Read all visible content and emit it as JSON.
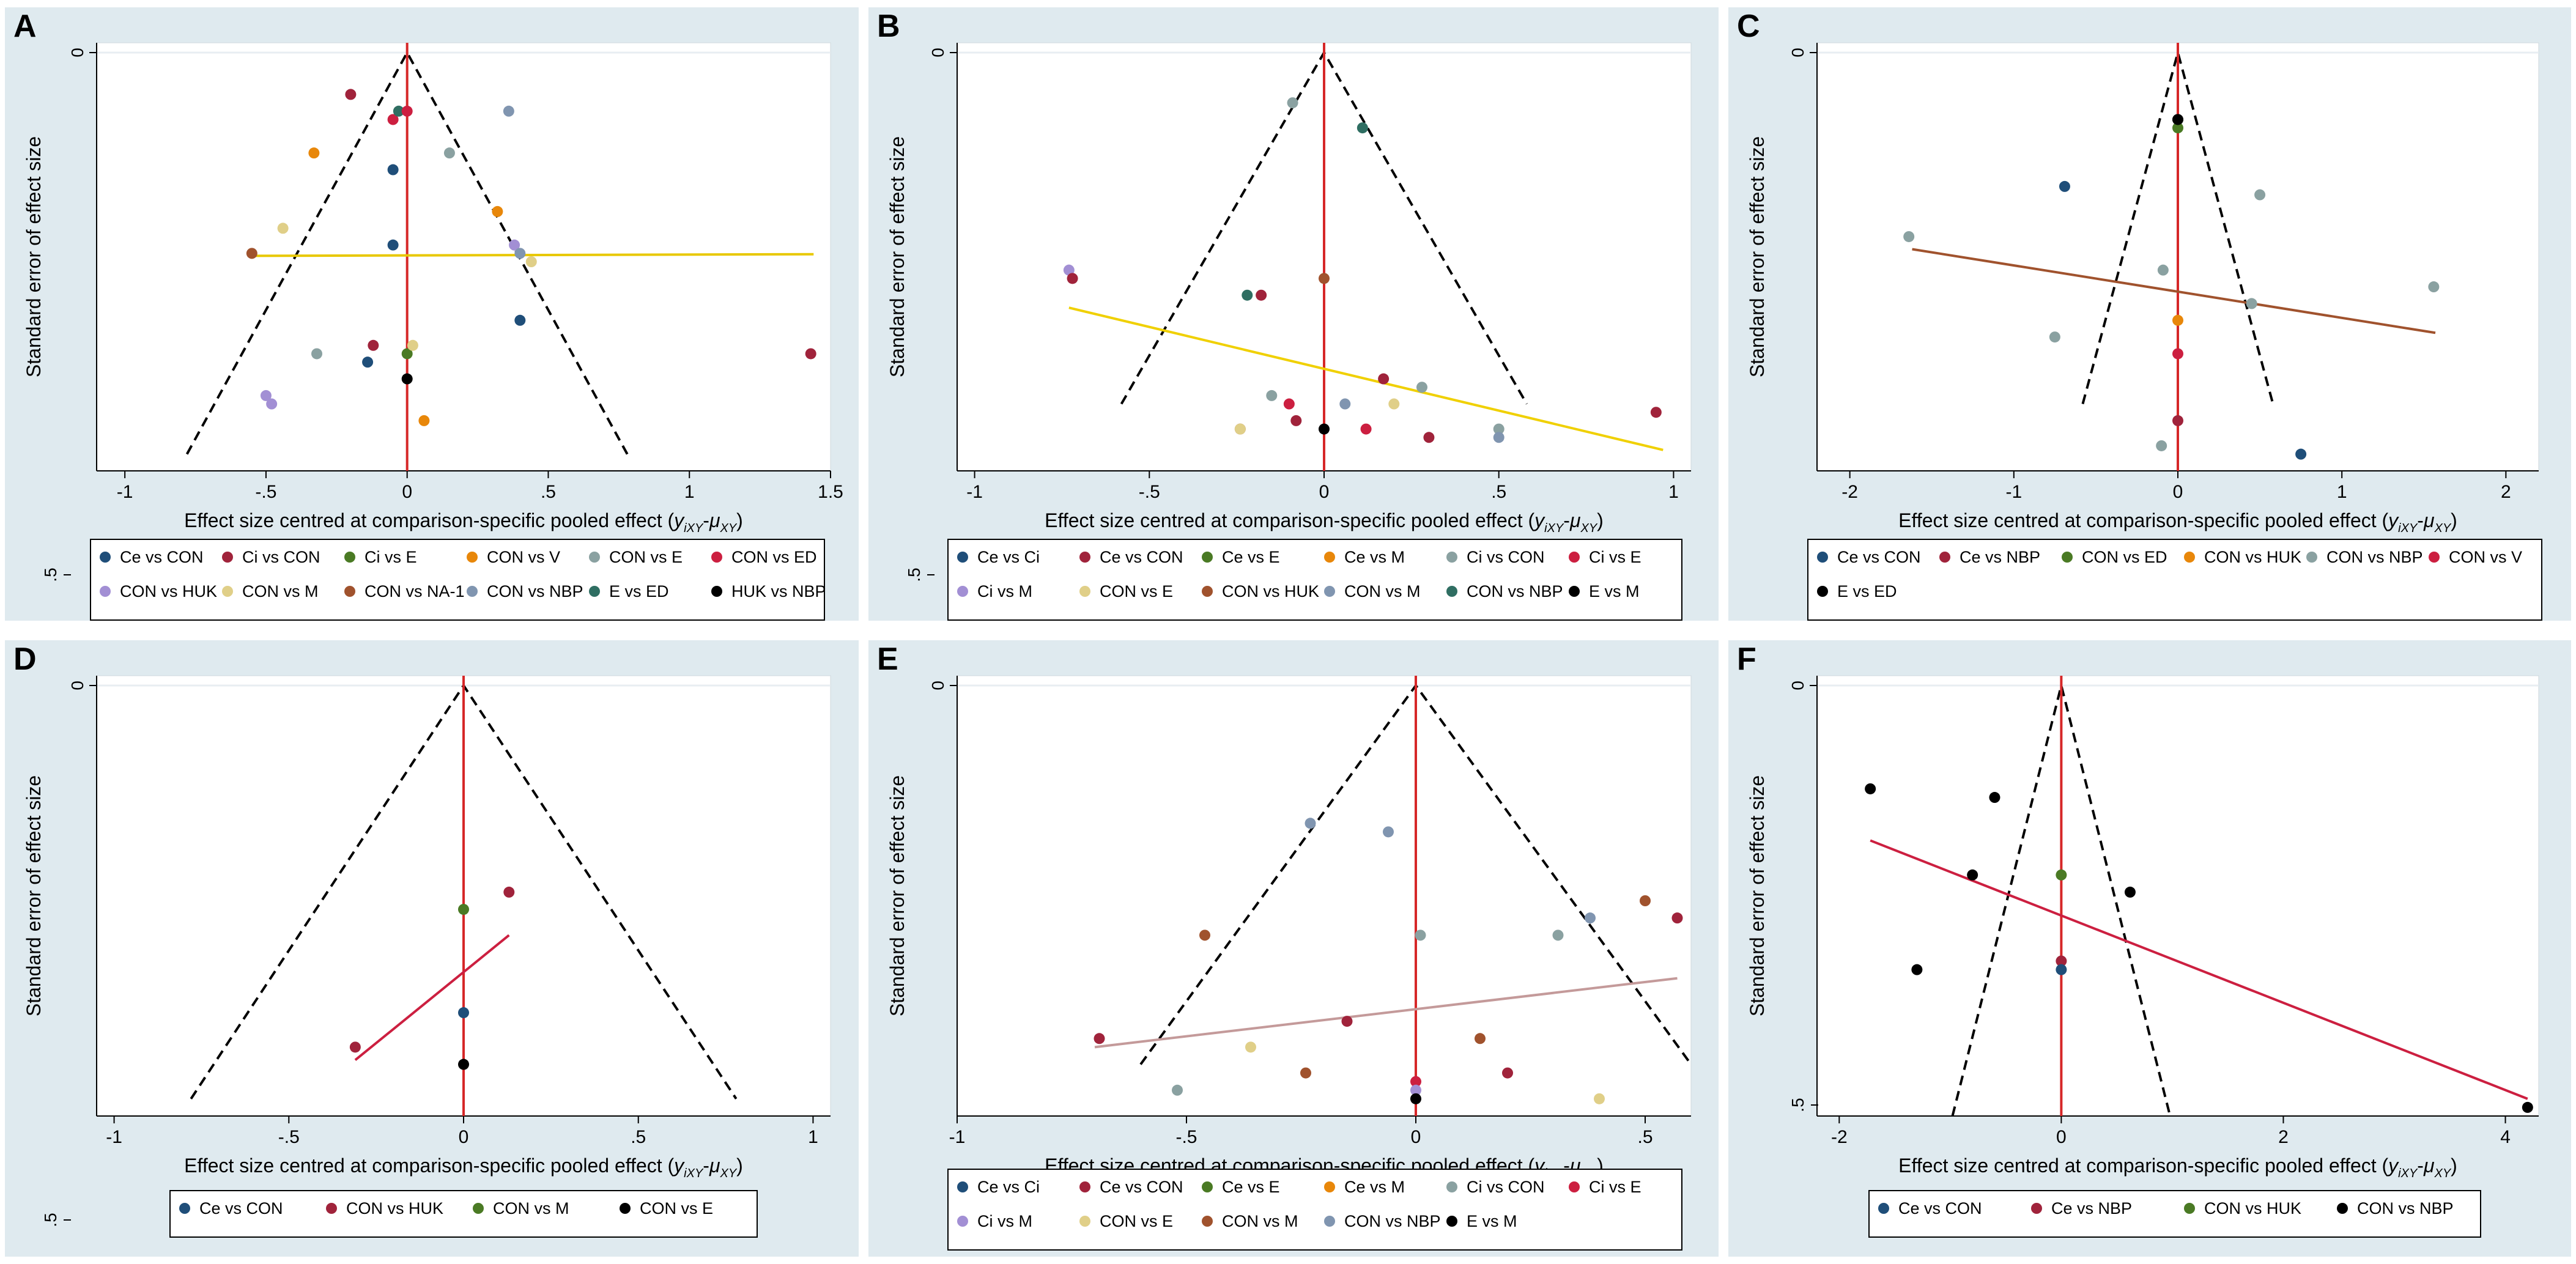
{
  "colors": {
    "panel_bg": "#dfeaef",
    "plot_bg": "#ffffff",
    "grid": "#e8eef2",
    "ref_line": "#d62728",
    "funnel": "#000000"
  },
  "axis_common": {
    "xlabel_prefix": "Effect size centred at comparison-specific pooled effect (",
    "xlabel_math": "y",
    "xlabel_sub1": "iXY",
    "xlabel_mid": "-",
    "xlabel_mu": "μ",
    "xlabel_sub2": "XY",
    "xlabel_suffix": ")",
    "ylabel": "Standard error of effect size"
  },
  "chart_data": [
    {
      "panel": "A",
      "type": "scatter",
      "xlim": [
        -1.1,
        1.5
      ],
      "ylim": [
        0,
        0.5
      ],
      "xticks": [
        -1,
        -0.5,
        0,
        0.5,
        1,
        1.5
      ],
      "xtick_labels": [
        "-1",
        "-.5",
        "0",
        ".5",
        "1",
        "1.5"
      ],
      "y_top_label": "0",
      "y_bottom_label": ".5",
      "funnel": {
        "apex": [
          0,
          0
        ],
        "left_base": [
          -0.78,
          0.48
        ],
        "right_base": [
          0.78,
          0.48
        ]
      },
      "regression": {
        "color": "#e8c800",
        "from": [
          -0.55,
          0.243
        ],
        "to": [
          1.44,
          0.241
        ]
      },
      "legend": [
        {
          "label": "Ce vs CON",
          "color": "#1f4e79"
        },
        {
          "label": "Ci vs CON",
          "color": "#a0233b"
        },
        {
          "label": "Ci vs E",
          "color": "#4a7a24"
        },
        {
          "label": "CON vs V",
          "color": "#e8870a"
        },
        {
          "label": "CON vs E",
          "color": "#8aa1a1"
        },
        {
          "label": "CON vs ED",
          "color": "#cc1f40"
        },
        {
          "label": "CON vs HUK",
          "color": "#a28fd4"
        },
        {
          "label": "CON vs M",
          "color": "#e0cf88"
        },
        {
          "label": "CON vs NA-1",
          "color": "#a0522d"
        },
        {
          "label": "CON vs NBP",
          "color": "#8095b0"
        },
        {
          "label": "E vs ED",
          "color": "#2f6e62"
        },
        {
          "label": "HUK vs NBP",
          "color": "#000000"
        }
      ],
      "points": [
        {
          "x": -0.2,
          "y": 0.05,
          "s": 1
        },
        {
          "x": -0.05,
          "y": 0.08,
          "s": 5
        },
        {
          "x": -0.03,
          "y": 0.07,
          "s": 10
        },
        {
          "x": 0.0,
          "y": 0.07,
          "s": 5
        },
        {
          "x": 0.36,
          "y": 0.07,
          "s": 9
        },
        {
          "x": -0.33,
          "y": 0.12,
          "s": 3
        },
        {
          "x": -0.05,
          "y": 0.14,
          "s": 0
        },
        {
          "x": 0.15,
          "y": 0.12,
          "s": 4
        },
        {
          "x": 0.32,
          "y": 0.19,
          "s": 3
        },
        {
          "x": -0.44,
          "y": 0.21,
          "s": 7
        },
        {
          "x": -0.05,
          "y": 0.23,
          "s": 0
        },
        {
          "x": 0.38,
          "y": 0.23,
          "s": 6
        },
        {
          "x": 0.4,
          "y": 0.24,
          "s": 9
        },
        {
          "x": -0.55,
          "y": 0.24,
          "s": 8
        },
        {
          "x": 0.44,
          "y": 0.25,
          "s": 7
        },
        {
          "x": 0.4,
          "y": 0.32,
          "s": 0
        },
        {
          "x": -0.32,
          "y": 0.36,
          "s": 4
        },
        {
          "x": -0.12,
          "y": 0.35,
          "s": 1
        },
        {
          "x": -0.14,
          "y": 0.37,
          "s": 0
        },
        {
          "x": 0.0,
          "y": 0.36,
          "s": 2
        },
        {
          "x": 0.02,
          "y": 0.35,
          "s": 7
        },
        {
          "x": 1.43,
          "y": 0.36,
          "s": 1
        },
        {
          "x": 0.0,
          "y": 0.39,
          "s": 11
        },
        {
          "x": -0.5,
          "y": 0.41,
          "s": 6
        },
        {
          "x": -0.48,
          "y": 0.42,
          "s": 6
        },
        {
          "x": 0.06,
          "y": 0.44,
          "s": 3
        }
      ]
    },
    {
      "panel": "B",
      "type": "scatter",
      "xlim": [
        -1.05,
        1.05
      ],
      "ylim": [
        0,
        0.5
      ],
      "xticks": [
        -1,
        -0.5,
        0,
        0.5,
        1
      ],
      "xtick_labels": [
        "-1",
        "-.5",
        "0",
        ".5",
        "1"
      ],
      "y_top_label": "0",
      "y_bottom_label": ".5",
      "funnel": {
        "apex": [
          0,
          0
        ],
        "left_base": [
          -0.58,
          0.42
        ],
        "right_base": [
          0.58,
          0.42
        ]
      },
      "regression": {
        "color": "#f0d000",
        "from": [
          -0.73,
          0.305
        ],
        "to": [
          0.97,
          0.475
        ]
      },
      "legend": [
        {
          "label": "Ce vs Ci",
          "color": "#1f4e79"
        },
        {
          "label": "Ce vs CON",
          "color": "#a0233b"
        },
        {
          "label": "Ce vs E",
          "color": "#4a7a24"
        },
        {
          "label": "Ce vs M",
          "color": "#e8870a"
        },
        {
          "label": "Ci vs CON",
          "color": "#8aa1a1"
        },
        {
          "label": "Ci vs E",
          "color": "#cc1f40"
        },
        {
          "label": "Ci vs M",
          "color": "#a28fd4"
        },
        {
          "label": "CON vs E",
          "color": "#e0cf88"
        },
        {
          "label": "CON vs HUK",
          "color": "#a0522d"
        },
        {
          "label": "CON vs M",
          "color": "#8095b0"
        },
        {
          "label": "CON vs NBP",
          "color": "#2f6e62"
        },
        {
          "label": "E vs M",
          "color": "#000000"
        }
      ],
      "points": [
        {
          "x": -0.09,
          "y": 0.06,
          "s": 4
        },
        {
          "x": 0.11,
          "y": 0.09,
          "s": 10
        },
        {
          "x": -0.73,
          "y": 0.26,
          "s": 6
        },
        {
          "x": -0.72,
          "y": 0.27,
          "s": 1
        },
        {
          "x": 0.0,
          "y": 0.27,
          "s": 8
        },
        {
          "x": -0.22,
          "y": 0.29,
          "s": 10
        },
        {
          "x": -0.18,
          "y": 0.29,
          "s": 1
        },
        {
          "x": 0.17,
          "y": 0.39,
          "s": 1
        },
        {
          "x": 0.28,
          "y": 0.4,
          "s": 4
        },
        {
          "x": -0.15,
          "y": 0.41,
          "s": 4
        },
        {
          "x": 0.06,
          "y": 0.42,
          "s": 9
        },
        {
          "x": -0.1,
          "y": 0.42,
          "s": 5
        },
        {
          "x": 0.2,
          "y": 0.42,
          "s": 7
        },
        {
          "x": -0.08,
          "y": 0.44,
          "s": 1
        },
        {
          "x": -0.24,
          "y": 0.45,
          "s": 8
        },
        {
          "x": 0.0,
          "y": 0.45,
          "s": 11
        },
        {
          "x": 0.12,
          "y": 0.45,
          "s": 5
        },
        {
          "x": 0.5,
          "y": 0.45,
          "s": 4
        },
        {
          "x": 0.5,
          "y": 0.46,
          "s": 9
        },
        {
          "x": 0.3,
          "y": 0.46,
          "s": 1
        },
        {
          "x": 0.95,
          "y": 0.43,
          "s": 1
        },
        {
          "x": -0.24,
          "y": 0.45,
          "s": 7
        }
      ]
    },
    {
      "panel": "C",
      "type": "scatter",
      "xlim": [
        -2.2,
        2.2
      ],
      "ylim": [
        0,
        0.5
      ],
      "xticks": [
        -2,
        -1,
        0,
        1,
        2
      ],
      "xtick_labels": [
        "-2",
        "-1",
        "0",
        "1",
        "2"
      ],
      "y_top_label": "0",
      "y_bottom_label": "",
      "funnel": {
        "apex": [
          0,
          0
        ],
        "left_base": [
          -0.58,
          0.42
        ],
        "right_base": [
          0.58,
          0.42
        ]
      },
      "regression": {
        "color": "#a0522d",
        "from": [
          -1.62,
          0.235
        ],
        "to": [
          1.57,
          0.335
        ]
      },
      "legend": [
        {
          "label": "Ce vs CON",
          "color": "#1f4e79"
        },
        {
          "label": "Ce vs NBP",
          "color": "#a0233b"
        },
        {
          "label": "CON vs ED",
          "color": "#4a7a24"
        },
        {
          "label": "CON vs HUK",
          "color": "#e8870a"
        },
        {
          "label": "CON vs NBP",
          "color": "#8aa1a1"
        },
        {
          "label": "CON vs V",
          "color": "#cc1f40"
        },
        {
          "label": "E vs ED",
          "color": "#000000"
        }
      ],
      "points": [
        {
          "x": 0.0,
          "y": 0.08,
          "s": 6
        },
        {
          "x": 0.0,
          "y": 0.09,
          "s": 2
        },
        {
          "x": -0.69,
          "y": 0.16,
          "s": 0
        },
        {
          "x": 0.5,
          "y": 0.17,
          "s": 4
        },
        {
          "x": -1.64,
          "y": 0.22,
          "s": 4
        },
        {
          "x": -0.09,
          "y": 0.26,
          "s": 4
        },
        {
          "x": 1.56,
          "y": 0.28,
          "s": 4
        },
        {
          "x": 0.45,
          "y": 0.3,
          "s": 4
        },
        {
          "x": 0.0,
          "y": 0.32,
          "s": 3
        },
        {
          "x": -0.75,
          "y": 0.34,
          "s": 4
        },
        {
          "x": 0.0,
          "y": 0.36,
          "s": 5
        },
        {
          "x": 0.0,
          "y": 0.44,
          "s": 1
        },
        {
          "x": -0.1,
          "y": 0.47,
          "s": 4
        },
        {
          "x": 0.75,
          "y": 0.48,
          "s": 0
        },
        {
          "x": 0.0,
          "y": 0.08,
          "s": 6
        }
      ]
    },
    {
      "panel": "D",
      "type": "scatter",
      "xlim": [
        -1.05,
        1.05
      ],
      "ylim": [
        0,
        0.5
      ],
      "xticks": [
        -1,
        -0.5,
        0,
        0.5,
        1
      ],
      "xtick_labels": [
        "-1",
        "-.5",
        "0",
        ".5",
        "1"
      ],
      "y_top_label": "0",
      "y_bottom_label": ".5",
      "funnel": {
        "apex": [
          0,
          0
        ],
        "left_base": [
          -0.78,
          0.48
        ],
        "right_base": [
          0.78,
          0.48
        ]
      },
      "regression": {
        "color": "#cc1f40",
        "from": [
          -0.31,
          0.435
        ],
        "to": [
          0.13,
          0.29
        ]
      },
      "legend": [
        {
          "label": "Ce vs CON",
          "color": "#1f4e79"
        },
        {
          "label": "CON vs HUK",
          "color": "#a0233b"
        },
        {
          "label": "CON vs M",
          "color": "#4a7a24"
        },
        {
          "label": "CON vs E",
          "color": "#000000"
        }
      ],
      "points": [
        {
          "x": 0.13,
          "y": 0.24,
          "s": 1
        },
        {
          "x": 0.0,
          "y": 0.26,
          "s": 2
        },
        {
          "x": 0.0,
          "y": 0.38,
          "s": 0
        },
        {
          "x": -0.31,
          "y": 0.42,
          "s": 1
        },
        {
          "x": 0.0,
          "y": 0.44,
          "s": 3
        }
      ]
    },
    {
      "panel": "E",
      "type": "scatter",
      "xlim": [
        -1.0,
        0.6
      ],
      "ylim": [
        0,
        0.5
      ],
      "xticks": [
        -1,
        -0.5,
        0,
        0.5
      ],
      "xtick_labels": [
        "-1",
        "-.5",
        "0",
        ".5"
      ],
      "y_top_label": "0",
      "y_bottom_label": "",
      "funnel": {
        "apex": [
          0,
          0
        ],
        "left_base": [
          -0.6,
          0.44
        ],
        "right_base": [
          0.6,
          0.44
        ]
      },
      "regression": {
        "color": "#c49a9a",
        "from": [
          -0.7,
          0.42
        ],
        "to": [
          0.57,
          0.34
        ]
      },
      "legend": [
        {
          "label": "Ce vs Ci",
          "color": "#1f4e79"
        },
        {
          "label": "Ce vs CON",
          "color": "#a0233b"
        },
        {
          "label": "Ce vs E",
          "color": "#4a7a24"
        },
        {
          "label": "Ce vs M",
          "color": "#e8870a"
        },
        {
          "label": "Ci vs CON",
          "color": "#8aa1a1"
        },
        {
          "label": "Ci vs E",
          "color": "#cc1f40"
        },
        {
          "label": "Ci vs M",
          "color": "#a28fd4"
        },
        {
          "label": "CON vs E",
          "color": "#e0cf88"
        },
        {
          "label": "CON vs M",
          "color": "#a0522d"
        },
        {
          "label": "CON vs NBP",
          "color": "#8095b0"
        },
        {
          "label": "E vs M",
          "color": "#000000"
        }
      ],
      "points": [
        {
          "x": -0.23,
          "y": 0.16,
          "s": 9
        },
        {
          "x": -0.06,
          "y": 0.17,
          "s": 9
        },
        {
          "x": 0.5,
          "y": 0.25,
          "s": 8
        },
        {
          "x": 0.57,
          "y": 0.27,
          "s": 1
        },
        {
          "x": 0.38,
          "y": 0.27,
          "s": 9
        },
        {
          "x": 0.31,
          "y": 0.29,
          "s": 4
        },
        {
          "x": 0.01,
          "y": 0.29,
          "s": 4
        },
        {
          "x": -0.46,
          "y": 0.29,
          "s": 8
        },
        {
          "x": -0.15,
          "y": 0.39,
          "s": 1
        },
        {
          "x": -0.69,
          "y": 0.41,
          "s": 1
        },
        {
          "x": -0.36,
          "y": 0.42,
          "s": 7
        },
        {
          "x": 0.14,
          "y": 0.41,
          "s": 8
        },
        {
          "x": -0.24,
          "y": 0.45,
          "s": 8
        },
        {
          "x": 0.2,
          "y": 0.45,
          "s": 1
        },
        {
          "x": 0.0,
          "y": 0.46,
          "s": 5
        },
        {
          "x": 0.0,
          "y": 0.47,
          "s": 6
        },
        {
          "x": 0.0,
          "y": 0.48,
          "s": 10
        },
        {
          "x": -0.52,
          "y": 0.47,
          "s": 4
        },
        {
          "x": 0.4,
          "y": 0.48,
          "s": 7
        }
      ]
    },
    {
      "panel": "F",
      "type": "scatter",
      "xlim": [
        -2.2,
        4.3
      ],
      "ylim": [
        0,
        0.5
      ],
      "xticks": [
        -2,
        0,
        2,
        4
      ],
      "xtick_labels": [
        "-2",
        "0",
        "2",
        "4"
      ],
      "y_top_label": "0",
      "y_bottom_label": ".5",
      "funnel": {
        "apex": [
          0,
          0
        ],
        "left_base": [
          -0.98,
          0.5
        ],
        "right_base": [
          0.98,
          0.5
        ]
      },
      "regression": {
        "color": "#cc1f40",
        "from": [
          -1.72,
          0.18
        ],
        "to": [
          4.2,
          0.48
        ]
      },
      "legend": [
        {
          "label": "Ce vs CON",
          "color": "#1f4e79"
        },
        {
          "label": "Ce vs NBP",
          "color": "#a0233b"
        },
        {
          "label": "CON vs HUK",
          "color": "#4a7a24"
        },
        {
          "label": "CON vs NBP",
          "color": "#000000"
        }
      ],
      "points": [
        {
          "x": -1.72,
          "y": 0.12,
          "s": 3
        },
        {
          "x": -0.6,
          "y": 0.13,
          "s": 3
        },
        {
          "x": -0.8,
          "y": 0.22,
          "s": 3
        },
        {
          "x": 0.0,
          "y": 0.22,
          "s": 2
        },
        {
          "x": 0.62,
          "y": 0.24,
          "s": 3
        },
        {
          "x": -1.3,
          "y": 0.33,
          "s": 3
        },
        {
          "x": 0.0,
          "y": 0.32,
          "s": 1
        },
        {
          "x": 0.0,
          "y": 0.33,
          "s": 0
        },
        {
          "x": 4.2,
          "y": 0.49,
          "s": 3
        }
      ]
    }
  ]
}
